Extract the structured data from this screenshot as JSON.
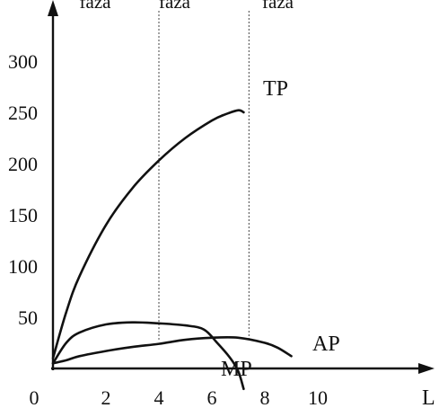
{
  "chart_data": {
    "type": "line",
    "title": "",
    "xlabel": "L",
    "ylabel": "",
    "xlim": [
      0,
      12
    ],
    "ylim": [
      0,
      300
    ],
    "grid": false,
    "legend": "none",
    "x_ticks": [
      "0",
      "2",
      "4",
      "6",
      "8",
      "10"
    ],
    "x_tick_values": [
      0,
      2,
      4,
      6,
      8,
      10
    ],
    "y_ticks": [
      "300",
      "250",
      "200",
      "150",
      "100",
      "50"
    ],
    "y_tick_values": [
      300,
      250,
      200,
      150,
      100,
      50
    ],
    "phases": [
      {
        "label": "faza",
        "boundary_x": 4
      },
      {
        "label": "faza",
        "boundary_x": 7.4
      },
      {
        "label": "faza"
      }
    ],
    "phase_label_x": [
      1,
      4,
      7.9
    ],
    "series": [
      {
        "name": "TP",
        "x": [
          0,
          0.5,
          1,
          2,
          3,
          4,
          5,
          6,
          6.5,
          7,
          7.2
        ],
        "y": [
          10,
          55,
          90,
          140,
          176,
          203,
          225,
          242,
          248,
          252,
          250
        ]
      },
      {
        "name": "AP",
        "x": [
          0,
          0.5,
          1,
          2,
          3,
          4,
          5,
          6,
          7,
          8,
          8.5,
          9
        ],
        "y": [
          5,
          8,
          12,
          17,
          21,
          24,
          28,
          30,
          30,
          25,
          20,
          12
        ]
      },
      {
        "name": "MP",
        "x": [
          0,
          0.5,
          1,
          2,
          3,
          4,
          5,
          5.7,
          6.2,
          6.7,
          7,
          7.2
        ],
        "y": [
          5,
          25,
          35,
          43,
          45,
          44,
          42,
          38,
          25,
          10,
          -3,
          -20
        ]
      }
    ],
    "axis_color": "#111111",
    "line_color": "#111111"
  }
}
